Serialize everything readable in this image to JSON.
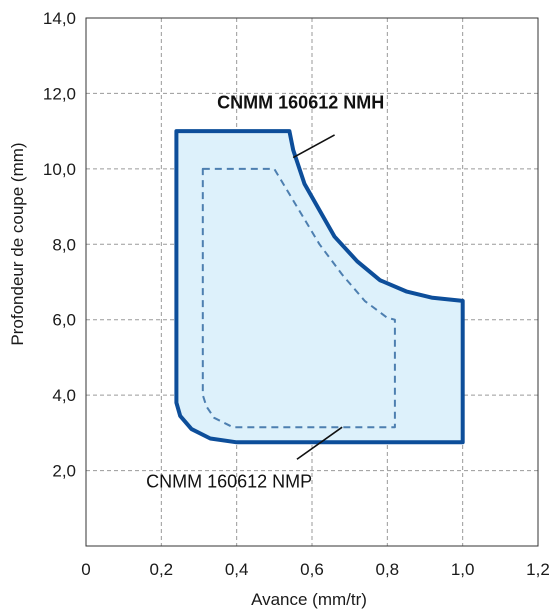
{
  "chart_data": {
    "type": "area",
    "title": "",
    "xlabel": "Avance (mm/tr)",
    "ylabel": "Profondeur de coupe (mm)",
    "xlim": [
      0,
      1.2
    ],
    "ylim": [
      0,
      14
    ],
    "x_ticks": [
      "0",
      "0,2",
      "0,4",
      "0,6",
      "0,8",
      "1,0",
      "1,2"
    ],
    "y_ticks": [
      "2,0",
      "4,0",
      "6,0",
      "8,0",
      "10,0",
      "12,0",
      "14,0"
    ],
    "x_tick_values": [
      0,
      0.2,
      0.4,
      0.6,
      0.8,
      1.0,
      1.2
    ],
    "y_tick_values": [
      2,
      4,
      6,
      8,
      10,
      12,
      14
    ],
    "grid": true,
    "colors": {
      "outline": "#0d4e9a",
      "fill": "#ddf1fb",
      "dashed": "#4d7fb0",
      "grid": "#9a9a9a"
    },
    "series": [
      {
        "name": "CNMM 160612 NMH",
        "style": "solid",
        "points": [
          [
            0.24,
            11.0
          ],
          [
            0.54,
            11.0
          ],
          [
            0.55,
            10.5
          ],
          [
            0.58,
            9.6
          ],
          [
            0.62,
            8.9
          ],
          [
            0.66,
            8.2
          ],
          [
            0.72,
            7.55
          ],
          [
            0.78,
            7.05
          ],
          [
            0.85,
            6.75
          ],
          [
            0.92,
            6.58
          ],
          [
            1.0,
            6.5
          ],
          [
            1.0,
            2.75
          ],
          [
            0.4,
            2.75
          ],
          [
            0.33,
            2.85
          ],
          [
            0.28,
            3.1
          ],
          [
            0.25,
            3.45
          ],
          [
            0.24,
            3.8
          ],
          [
            0.24,
            11.0
          ]
        ]
      },
      {
        "name": "CNMM 160612 NMP",
        "style": "dashed",
        "points": [
          [
            0.31,
            10.0
          ],
          [
            0.5,
            10.0
          ],
          [
            0.56,
            9.0
          ],
          [
            0.62,
            8.0
          ],
          [
            0.68,
            7.2
          ],
          [
            0.74,
            6.5
          ],
          [
            0.8,
            6.05
          ],
          [
            0.82,
            6.0
          ],
          [
            0.82,
            3.15
          ],
          [
            0.39,
            3.15
          ],
          [
            0.34,
            3.4
          ],
          [
            0.32,
            3.7
          ],
          [
            0.31,
            4.0
          ],
          [
            0.31,
            10.0
          ]
        ]
      }
    ],
    "annotations": [
      {
        "text": "CNMM 160612 NMH",
        "weight": "bold",
        "at": [
          0.57,
          11.6
        ],
        "leader": [
          [
            0.55,
            10.3
          ],
          [
            0.66,
            10.9
          ]
        ]
      },
      {
        "text": "CNMM 160612 NMP",
        "weight": "normal",
        "at": [
          0.38,
          1.55
        ],
        "leader": [
          [
            0.68,
            3.15
          ],
          [
            0.56,
            2.3
          ]
        ]
      }
    ]
  }
}
